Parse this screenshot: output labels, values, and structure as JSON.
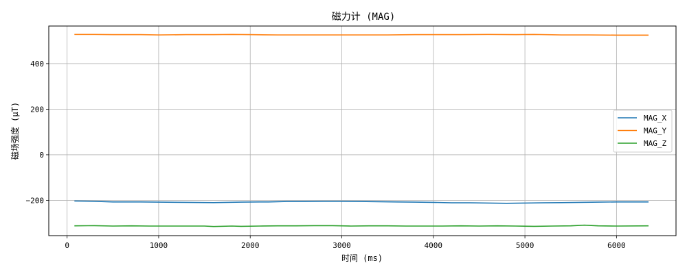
{
  "chart_data": {
    "type": "line",
    "title": "磁力计 (MAG)",
    "xlabel": "时间 (ms)",
    "ylabel": "磁场强度 (μT)",
    "xlim": [
      -200,
      6650
    ],
    "ylim": [
      -355,
      565
    ],
    "xticks": [
      0,
      1000,
      2000,
      3000,
      4000,
      5000,
      6000
    ],
    "yticks": [
      -200,
      0,
      200,
      400
    ],
    "grid": true,
    "legend_position": "center-right",
    "series": [
      {
        "name": "MAG_X",
        "color": "#1f77b4",
        "points": [
          [
            80,
            -203
          ],
          [
            300,
            -204
          ],
          [
            500,
            -207
          ],
          [
            800,
            -207
          ],
          [
            1000,
            -208
          ],
          [
            1300,
            -209
          ],
          [
            1600,
            -210
          ],
          [
            1900,
            -208
          ],
          [
            2100,
            -207
          ],
          [
            2200,
            -207
          ],
          [
            2400,
            -205
          ],
          [
            2600,
            -205
          ],
          [
            2800,
            -204
          ],
          [
            3000,
            -204
          ],
          [
            3200,
            -205
          ],
          [
            3400,
            -206
          ],
          [
            3600,
            -207
          ],
          [
            3800,
            -208
          ],
          [
            4000,
            -209
          ],
          [
            4200,
            -211
          ],
          [
            4400,
            -211
          ],
          [
            4600,
            -212
          ],
          [
            4800,
            -213
          ],
          [
            5000,
            -212
          ],
          [
            5200,
            -211
          ],
          [
            5400,
            -210
          ],
          [
            5600,
            -209
          ],
          [
            5800,
            -208
          ],
          [
            6000,
            -207
          ],
          [
            6350,
            -207
          ]
        ]
      },
      {
        "name": "MAG_Y",
        "color": "#ff7f0e",
        "points": [
          [
            80,
            528
          ],
          [
            300,
            528
          ],
          [
            500,
            527
          ],
          [
            800,
            527
          ],
          [
            1000,
            526
          ],
          [
            1300,
            527
          ],
          [
            1600,
            527
          ],
          [
            1800,
            528
          ],
          [
            2000,
            527
          ],
          [
            2300,
            526
          ],
          [
            2600,
            526
          ],
          [
            2900,
            526
          ],
          [
            3200,
            526
          ],
          [
            3500,
            526
          ],
          [
            3800,
            527
          ],
          [
            4000,
            527
          ],
          [
            4300,
            527
          ],
          [
            4600,
            528
          ],
          [
            4900,
            527
          ],
          [
            5100,
            528
          ],
          [
            5400,
            526
          ],
          [
            5700,
            526
          ],
          [
            6000,
            525
          ],
          [
            6350,
            525
          ]
        ]
      },
      {
        "name": "MAG_Z",
        "color": "#2ca02c",
        "points": [
          [
            80,
            -312
          ],
          [
            300,
            -311
          ],
          [
            500,
            -313
          ],
          [
            700,
            -312
          ],
          [
            900,
            -313
          ],
          [
            1200,
            -313
          ],
          [
            1500,
            -313
          ],
          [
            1600,
            -315
          ],
          [
            1800,
            -313
          ],
          [
            1900,
            -314
          ],
          [
            2100,
            -313
          ],
          [
            2300,
            -312
          ],
          [
            2500,
            -312
          ],
          [
            2700,
            -311
          ],
          [
            2900,
            -311
          ],
          [
            3100,
            -313
          ],
          [
            3300,
            -312
          ],
          [
            3500,
            -312
          ],
          [
            3700,
            -313
          ],
          [
            3900,
            -313
          ],
          [
            4100,
            -313
          ],
          [
            4300,
            -312
          ],
          [
            4500,
            -313
          ],
          [
            4700,
            -312
          ],
          [
            4900,
            -313
          ],
          [
            5100,
            -314
          ],
          [
            5300,
            -313
          ],
          [
            5500,
            -312
          ],
          [
            5650,
            -309
          ],
          [
            5800,
            -312
          ],
          [
            6000,
            -313
          ],
          [
            6350,
            -312
          ]
        ]
      }
    ]
  }
}
